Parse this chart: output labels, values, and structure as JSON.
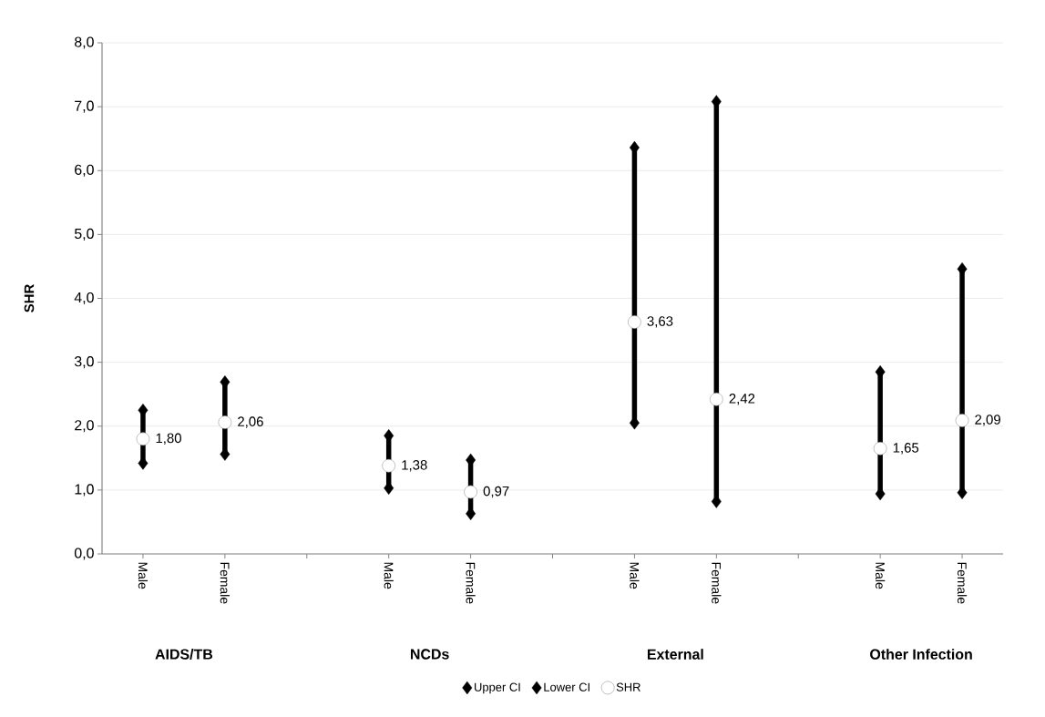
{
  "chart_data": {
    "type": "scatter",
    "ylabel": "SHR",
    "categories": [
      "Male",
      "Female",
      null,
      "Male",
      "Female",
      null,
      "Male",
      "Female",
      null,
      "Male",
      "Female"
    ],
    "series": [
      {
        "name": "Upper CI",
        "color": "#000000",
        "marker": "diamond",
        "values": [
          2.25,
          2.69,
          null,
          1.85,
          1.47,
          null,
          6.36,
          7.08,
          null,
          2.85,
          4.46
        ]
      },
      {
        "name": "Lower CI",
        "color": "#000000",
        "marker": "diamond",
        "values": [
          1.42,
          1.56,
          null,
          1.03,
          0.63,
          null,
          2.05,
          0.82,
          null,
          0.94,
          0.96
        ]
      },
      {
        "name": "SHR",
        "color": "#ffffff",
        "marker": "circle",
        "values": [
          1.8,
          2.06,
          null,
          1.38,
          0.97,
          null,
          3.63,
          2.42,
          null,
          1.65,
          2.09
        ],
        "value_labels": [
          "1,80",
          "2,06",
          null,
          "1,38",
          "0,97",
          null,
          "3,63",
          "2,42",
          null,
          "1,65",
          "2,09"
        ]
      }
    ],
    "annotations": [
      "AIDS/TB",
      "NCDs",
      "External",
      "Other Infection"
    ],
    "ylim": [
      0,
      8
    ],
    "yticks": [
      {
        "value": 0,
        "label": "0,0"
      },
      {
        "value": 1,
        "label": "1,0"
      },
      {
        "value": 2,
        "label": "2,0"
      },
      {
        "value": 3,
        "label": "3,0"
      },
      {
        "value": 4,
        "label": "4,0"
      },
      {
        "value": 5,
        "label": "5,0"
      },
      {
        "value": 6,
        "label": "6,0"
      },
      {
        "value": 7,
        "label": "7,0"
      },
      {
        "value": 8,
        "label": "8,0"
      }
    ],
    "grid": "y",
    "legend": "bottom"
  }
}
